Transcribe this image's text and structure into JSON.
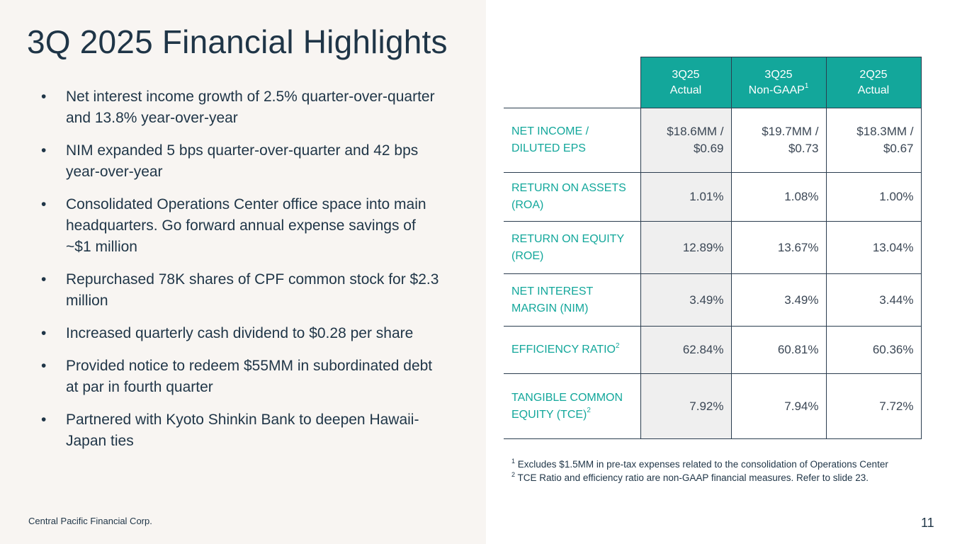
{
  "slide": {
    "title": "3Q 2025 Financial Highlights",
    "company": "Central Pacific Financial Corp.",
    "page_number": "11"
  },
  "bullets": [
    "Net interest income growth of 2.5% quarter-over-quarter and 13.8% year-over-year",
    "NIM expanded 5 bps quarter-over-quarter and 42 bps year-over-year",
    "Consolidated Operations Center office space into main headquarters. Go forward annual expense savings of ~$1 million",
    "Repurchased 78K shares of CPF common stock for $2.3 million",
    "Increased quarterly cash dividend to $0.28 per share",
    "Provided notice to redeem $55MM in subordinated debt at par in fourth quarter",
    "Partnered with Kyoto Shinkin Bank to deepen Hawaii-Japan ties"
  ],
  "bullet_symbol": "•",
  "table": {
    "columns": [
      {
        "line1": "3Q25",
        "line2": "Actual",
        "sup": ""
      },
      {
        "line1": "3Q25",
        "line2": "Non-GAAP",
        "sup": "1"
      },
      {
        "line1": "2Q25",
        "line2": "Actual",
        "sup": ""
      }
    ],
    "rows": [
      {
        "line1": "NET INCOME /",
        "line2": "DILUTED EPS",
        "sup": "",
        "cells": [
          {
            "line1": "$18.6MM /",
            "line2": "$0.69"
          },
          {
            "line1": "$19.7MM /",
            "line2": "$0.73"
          },
          {
            "line1": "$18.3MM /",
            "line2": "$0.67"
          }
        ]
      },
      {
        "line1": "RETURN ON ASSETS",
        "line2": "(ROA)",
        "sup": "",
        "cells": [
          "1.01%",
          "1.08%",
          "1.00%"
        ]
      },
      {
        "line1": "RETURN ON EQUITY",
        "line2": "(ROE)",
        "sup": "",
        "cells": [
          "12.89%",
          "13.67%",
          "13.04%"
        ]
      },
      {
        "line1": "NET INTEREST",
        "line2": "MARGIN (NIM)",
        "sup": "",
        "cells": [
          "3.49%",
          "3.49%",
          "3.44%"
        ]
      },
      {
        "line1": "EFFICIENCY RATIO",
        "line2": "",
        "sup": "2",
        "cells": [
          "62.84%",
          "60.81%",
          "60.36%"
        ]
      },
      {
        "line1": "TANGIBLE COMMON",
        "line2": "EQUITY (TCE)",
        "sup": "2",
        "cells": [
          "7.92%",
          "7.94%",
          "7.72%"
        ]
      }
    ]
  },
  "footnotes": [
    {
      "marker": "1",
      "text": "Excludes $1.5MM in pre-tax expenses related to the consolidation of Operations Center"
    },
    {
      "marker": "2",
      "text": "TCE Ratio and efficiency ratio are non-GAAP financial measures. Refer to slide 23."
    }
  ],
  "colors": {
    "accent_teal": "#13a79b",
    "navy_text": "#1f3547",
    "panel_bg": "#f8f5f2",
    "shaded_cell": "#efefef"
  }
}
